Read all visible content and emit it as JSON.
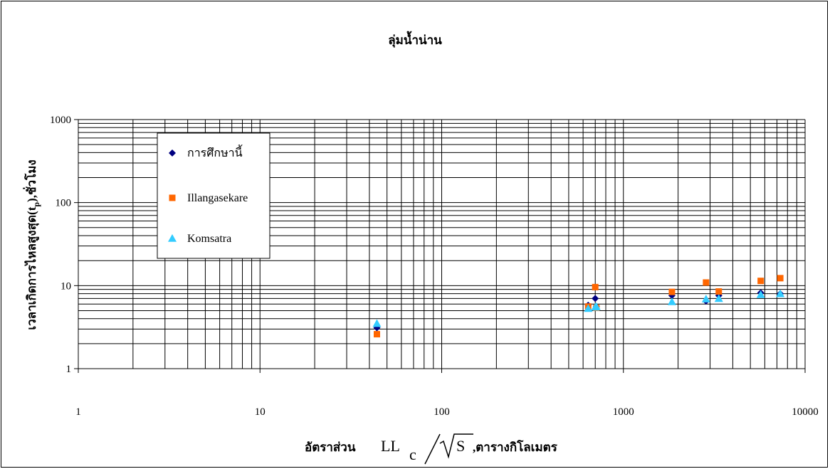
{
  "chart_data": {
    "type": "scatter",
    "title": "ลุ่มน้ำน่าน",
    "ylabel": "เวลาเกิดการไหลสูงสุด(t",
    "ylabel_sub": "p",
    "ylabel_tail": "),ชั่วโมง",
    "xlabel_prefix": "อัตราส่วน",
    "xlabel_formula_main": "LL",
    "xlabel_formula_sub": "c",
    "xlabel_formula_root": "S",
    "xlabel_suffix": ",ตารางกิโลเมตร",
    "x_scale": "log",
    "y_scale": "log",
    "xlim": [
      1,
      10000
    ],
    "ylim": [
      1,
      1000
    ],
    "x_ticks": [
      1,
      10,
      100,
      1000,
      10000
    ],
    "x_tick_labels": [
      "1",
      "10",
      "100",
      "1000",
      "10000"
    ],
    "y_ticks": [
      1,
      10,
      100,
      1000
    ],
    "y_tick_labels": [
      "1",
      "10",
      "100",
      "1000"
    ],
    "grid": true,
    "legend_position": "upper-left-inside",
    "series": [
      {
        "name": "การศึกษานี้",
        "marker": "diamond",
        "color": "#000080",
        "x": [
          44,
          640,
          700,
          710,
          1850,
          2850,
          3350,
          5700,
          7300
        ],
        "y": [
          3.1,
          5.8,
          7.0,
          5.6,
          7.6,
          6.5,
          7.6,
          8.2,
          8.0
        ]
      },
      {
        "name": "Illangasekare",
        "marker": "square",
        "color": "#FF6600",
        "x": [
          44,
          640,
          700,
          710,
          1850,
          2850,
          3350,
          5700,
          7300
        ],
        "y": [
          2.6,
          5.6,
          9.6,
          5.4,
          8.4,
          10.9,
          8.5,
          11.4,
          12.3
        ]
      },
      {
        "name": "Komsatra",
        "marker": "triangle",
        "color": "#33CCFF",
        "x": [
          44,
          640,
          700,
          710,
          1850,
          2850,
          3350,
          5700,
          7300
        ],
        "y": [
          3.5,
          5.3,
          5.5,
          5.6,
          6.4,
          6.9,
          7.0,
          7.8,
          8.0
        ]
      }
    ]
  }
}
